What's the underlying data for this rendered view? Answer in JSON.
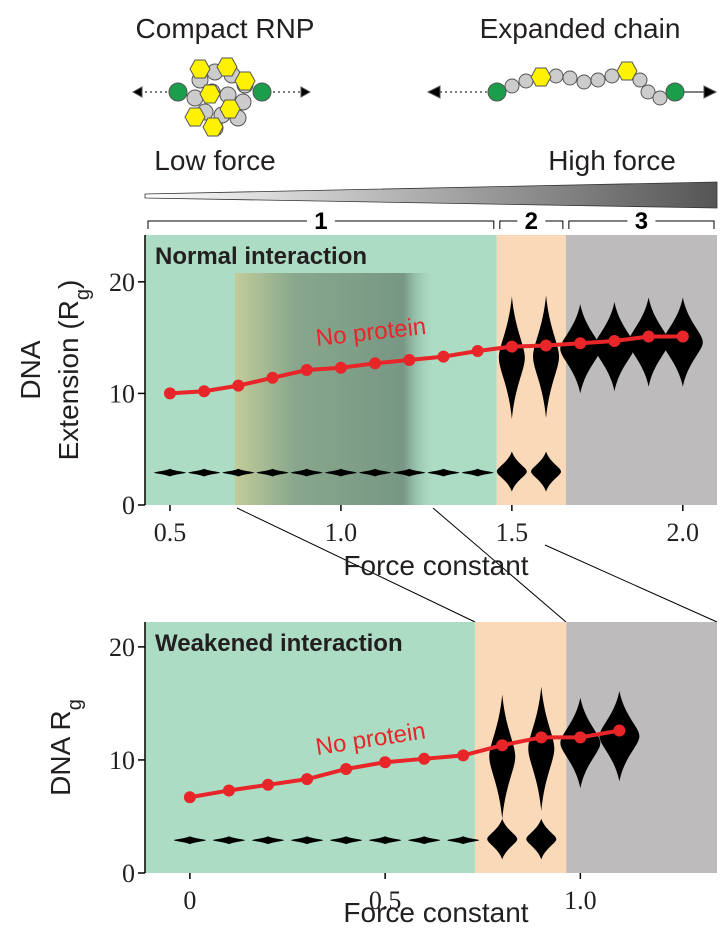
{
  "header": {
    "left_title": "Compact RNP",
    "right_title": "Expanded chain",
    "left_caption": "Low force",
    "right_caption": "High force"
  },
  "chart_data": [
    {
      "type": "line",
      "annotation": "Normal interaction",
      "xlabel": "Force constant",
      "ylabel": [
        "DNA",
        "Extension (R"
      ],
      "ylabel_subscript": "g",
      "ylabel_tail": ")",
      "x": [
        0.5,
        0.6,
        0.7,
        0.8,
        0.9,
        1.0,
        1.1,
        1.2,
        1.3,
        1.4,
        1.5,
        1.6,
        1.7,
        1.8,
        1.9,
        2.0
      ],
      "series": [
        {
          "name": "No protein",
          "color": "#e8262a",
          "values": [
            10.0,
            10.2,
            10.7,
            11.4,
            12.1,
            12.3,
            12.7,
            13.0,
            13.3,
            13.8,
            14.2,
            14.3,
            14.5,
            14.7,
            15.1,
            15.1
          ]
        }
      ],
      "xlim": [
        0.427,
        2.1
      ],
      "ylim": [
        0,
        24.2
      ],
      "xticks": [
        0.5,
        {
          "value": 1,
          "label": "1.0"
        },
        1.5,
        {
          "value": 2,
          "label": "2.0"
        }
      ],
      "yticks": [
        0,
        10,
        20
      ],
      "regions": [
        {
          "label": "1",
          "xlim": [
            0.427,
            1.456
          ],
          "color": "#acdcc4"
        },
        {
          "label": "2",
          "xlim": [
            1.456,
            1.658
          ],
          "color": "#fad9b9"
        },
        {
          "label": "3",
          "xlim": [
            1.658,
            2.1
          ],
          "color": "#bdbbbc"
        }
      ],
      "highlight_xlim": [
        0.69,
        1.27
      ]
    },
    {
      "type": "line",
      "annotation": "Weakened interaction",
      "xlabel": "Force constant",
      "ylabel": [
        "DNA R"
      ],
      "ylabel_subscript": "g",
      "ylabel_tail": "",
      "x": [
        0,
        0.1,
        0.2,
        0.3,
        0.4,
        0.5,
        0.6,
        0.7,
        0.8,
        0.9,
        1.0,
        1.1
      ],
      "series": [
        {
          "name": "No protein",
          "color": "#e8262a",
          "values": [
            6.7,
            7.3,
            7.8,
            8.3,
            9.2,
            9.8,
            10.1,
            10.4,
            11.3,
            12.0,
            12.0,
            12.6
          ]
        }
      ],
      "xlim": [
        -0.115,
        1.35
      ],
      "ylim": [
        0,
        22.2
      ],
      "xticks": [
        0,
        0.5,
        {
          "value": 1,
          "label": "1.0"
        }
      ],
      "yticks": [
        0,
        10,
        20
      ],
      "regions": [
        {
          "xlim": [
            -0.115,
            0.73
          ],
          "color": "#acdcc4"
        },
        {
          "xlim": [
            0.73,
            0.964
          ],
          "color": "#fad9b9"
        },
        {
          "xlim": [
            0.964,
            1.35
          ],
          "color": "#bdbbbc"
        }
      ]
    }
  ]
}
